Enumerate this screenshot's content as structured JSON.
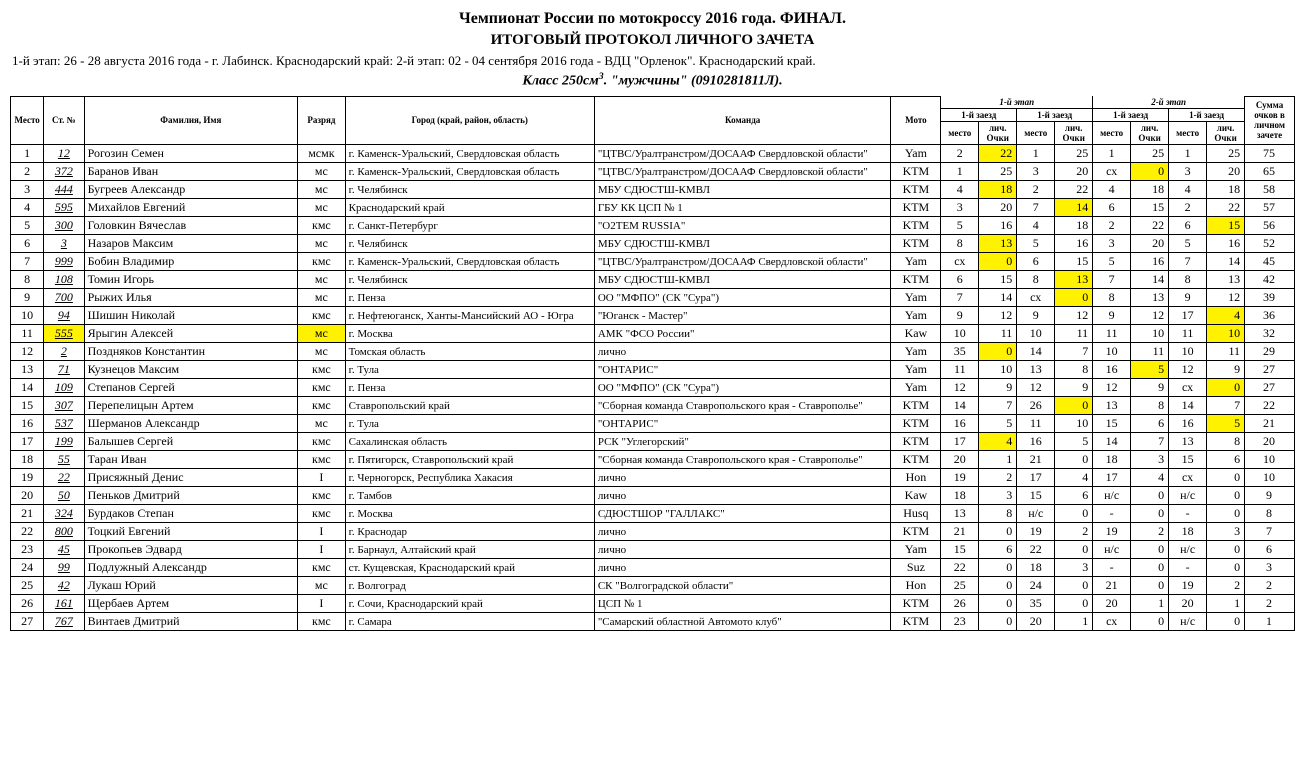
{
  "title1": "Чемпионат России по мотокроссу 2016 года. ФИНАЛ.",
  "title2": "ИТОГОВЫЙ ПРОТОКОЛ  ЛИЧНОГО  ЗАЧЕТА",
  "subtitle": "1-й этап: 26 - 28 августа 2016 года - г. Лабинск. Краснодарский край: 2-й этап: 02 - 04 сентября 2016 года - ВДЦ \"Орленок\". Краснодарский край.",
  "class_prefix": "Класс  250см",
  "class_sup": "3",
  "class_suffix": ". \"мужчины\" (0910281811Л).",
  "stage1_label": "1-й этап",
  "stage2_label": "2-й этап",
  "heat1_label": "1-й заезд",
  "heat2_label": "1-й заезд",
  "heat3_label": "1-й заезд",
  "heat4_label": "1-й заезд",
  "headers": {
    "place": "Место",
    "num": "Ст. №",
    "name": "Фамилия, Имя",
    "rank": "Разряд",
    "city": "Город (край, район, область)",
    "team": "Команда",
    "moto": "Мото",
    "m": "место",
    "pts": "лич. Очки",
    "total": "Сумма очков в личном зачете"
  },
  "highlight_color": "#fff200",
  "rows": [
    {
      "p": "1",
      "n": "12",
      "name": "Рогозин Семен",
      "rank": "мсмк",
      "city": "г. Каменск-Уральский, Свердловская область",
      "team": "\"ЦТВС/Уралтранстром/ДОСААФ Свердловской области\"",
      "moto": "Yam",
      "h": [
        [
          "2",
          "22",
          true
        ],
        [
          "1",
          "25",
          false
        ],
        [
          "1",
          "25",
          false
        ],
        [
          "1",
          "25",
          false
        ]
      ],
      "t": "75"
    },
    {
      "p": "2",
      "n": "372",
      "name": "Баранов Иван",
      "rank": "мс",
      "city": "г. Каменск-Уральский, Свердловская область",
      "team": "\"ЦТВС/Уралтранстром/ДОСААФ Свердловской области\"",
      "moto": "KTM",
      "h": [
        [
          "1",
          "25",
          false
        ],
        [
          "3",
          "20",
          false
        ],
        [
          "сх",
          "0",
          true
        ],
        [
          "3",
          "20",
          false
        ]
      ],
      "t": "65"
    },
    {
      "p": "3",
      "n": "444",
      "name": "Бугреев Александр",
      "rank": "мс",
      "city": "г. Челябинск",
      "team": "МБУ СДЮСТШ-КМВЛ",
      "moto": "KTM",
      "h": [
        [
          "4",
          "18",
          true
        ],
        [
          "2",
          "22",
          false
        ],
        [
          "4",
          "18",
          false
        ],
        [
          "4",
          "18",
          false
        ]
      ],
      "t": "58"
    },
    {
      "p": "4",
      "n": "595",
      "name": "Михайлов Евгений",
      "rank": "мс",
      "city": "Краснодарский край",
      "team": "ГБУ КК ЦСП № 1",
      "moto": "KTM",
      "h": [
        [
          "3",
          "20",
          false
        ],
        [
          "7",
          "14",
          true
        ],
        [
          "6",
          "15",
          false
        ],
        [
          "2",
          "22",
          false
        ]
      ],
      "t": "57"
    },
    {
      "p": "5",
      "n": "300",
      "name": "Головкин Вячеслав",
      "rank": "кмс",
      "city": "г. Санкт-Петербург",
      "team": "\"O2TEM RUSSIA\"",
      "moto": "KTM",
      "h": [
        [
          "5",
          "16",
          false
        ],
        [
          "4",
          "18",
          false
        ],
        [
          "2",
          "22",
          false
        ],
        [
          "6",
          "15",
          true
        ]
      ],
      "t": "56"
    },
    {
      "p": "6",
      "n": "3",
      "name": "Назаров Максим",
      "rank": "мс",
      "city": "г. Челябинск",
      "team": "МБУ СДЮСТШ-КМВЛ",
      "moto": "KTM",
      "h": [
        [
          "8",
          "13",
          true
        ],
        [
          "5",
          "16",
          false
        ],
        [
          "3",
          "20",
          false
        ],
        [
          "5",
          "16",
          false
        ]
      ],
      "t": "52"
    },
    {
      "p": "7",
      "n": "999",
      "name": "Бобин Владимир",
      "rank": "кмс",
      "city": "г. Каменск-Уральский, Свердловская область",
      "team": "\"ЦТВС/Уралтранстром/ДОСААФ Свердловской области\"",
      "moto": "Yam",
      "h": [
        [
          "сх",
          "0",
          true
        ],
        [
          "6",
          "15",
          false
        ],
        [
          "5",
          "16",
          false
        ],
        [
          "7",
          "14",
          false
        ]
      ],
      "t": "45"
    },
    {
      "p": "8",
      "n": "108",
      "name": "Томин Игорь",
      "rank": "мс",
      "city": "г. Челябинск",
      "team": "МБУ СДЮСТШ-КМВЛ",
      "moto": "KTM",
      "h": [
        [
          "6",
          "15",
          false
        ],
        [
          "8",
          "13",
          true
        ],
        [
          "7",
          "14",
          false
        ],
        [
          "8",
          "13",
          false
        ]
      ],
      "t": "42"
    },
    {
      "p": "9",
      "n": "700",
      "name": "Рыжих Илья",
      "rank": "мс",
      "city": "г. Пенза",
      "team": "ОО \"МФПО\" (СК \"Сура\")",
      "moto": "Yam",
      "h": [
        [
          "7",
          "14",
          false
        ],
        [
          "сх",
          "0",
          true
        ],
        [
          "8",
          "13",
          false
        ],
        [
          "9",
          "12",
          false
        ]
      ],
      "t": "39"
    },
    {
      "p": "10",
      "n": "94",
      "name": "Шишин Николай",
      "rank": "кмс",
      "city": "г. Нефтеюганск, Ханты-Мансийский АО - Югра",
      "team": "\"Юганск - Мастер\"",
      "moto": "Yam",
      "h": [
        [
          "9",
          "12",
          false
        ],
        [
          "9",
          "12",
          false
        ],
        [
          "9",
          "12",
          false
        ],
        [
          "17",
          "4",
          true
        ]
      ],
      "t": "36"
    },
    {
      "p": "11",
      "n": "555",
      "nhl": true,
      "name": "Ярыгин Алексей",
      "rank": "мс",
      "rankhl": true,
      "city": "г. Москва",
      "team": "АМК \"ФСО России\"",
      "moto": "Kaw",
      "h": [
        [
          "10",
          "11",
          false
        ],
        [
          "10",
          "11",
          false
        ],
        [
          "11",
          "10",
          false
        ],
        [
          "11",
          "10",
          true
        ]
      ],
      "t": "32"
    },
    {
      "p": "12",
      "n": "2",
      "name": "Поздняков Константин",
      "rank": "мс",
      "city": "Томская область",
      "team": "лично",
      "moto": "Yam",
      "h": [
        [
          "35",
          "0",
          true
        ],
        [
          "14",
          "7",
          false
        ],
        [
          "10",
          "11",
          false
        ],
        [
          "10",
          "11",
          false
        ]
      ],
      "t": "29"
    },
    {
      "p": "13",
      "n": "71",
      "name": "Кузнецов Максим",
      "rank": "кмс",
      "city": "г. Тула",
      "team": "\"ОНТАРИС\"",
      "moto": "Yam",
      "h": [
        [
          "11",
          "10",
          false
        ],
        [
          "13",
          "8",
          false
        ],
        [
          "16",
          "5",
          true
        ],
        [
          "12",
          "9",
          false
        ]
      ],
      "t": "27"
    },
    {
      "p": "14",
      "n": "109",
      "name": "Степанов Сергей",
      "rank": "кмс",
      "city": "г. Пенза",
      "team": "ОО \"МФПО\" (СК \"Сура\")",
      "moto": "Yam",
      "h": [
        [
          "12",
          "9",
          false
        ],
        [
          "12",
          "9",
          false
        ],
        [
          "12",
          "9",
          false
        ],
        [
          "сх",
          "0",
          true
        ]
      ],
      "t": "27"
    },
    {
      "p": "15",
      "n": "307",
      "name": "Перепелицын Артем",
      "rank": "кмс",
      "city": "Ставропольский край",
      "team": "\"Сборная команда Ставропольского края - Ставрополье\"",
      "moto": "KTM",
      "h": [
        [
          "14",
          "7",
          false
        ],
        [
          "26",
          "0",
          true
        ],
        [
          "13",
          "8",
          false
        ],
        [
          "14",
          "7",
          false
        ]
      ],
      "t": "22"
    },
    {
      "p": "16",
      "n": "537",
      "name": "Шерманов Александр",
      "rank": "мс",
      "city": "г. Тула",
      "team": "\"ОНТАРИС\"",
      "moto": "KTM",
      "h": [
        [
          "16",
          "5",
          false
        ],
        [
          "11",
          "10",
          false
        ],
        [
          "15",
          "6",
          false
        ],
        [
          "16",
          "5",
          true
        ]
      ],
      "t": "21"
    },
    {
      "p": "17",
      "n": "199",
      "name": "Балышев Сергей",
      "rank": "кмс",
      "city": "Сахалинская область",
      "team": "РСК \"Углегорский\"",
      "moto": "KTM",
      "h": [
        [
          "17",
          "4",
          true
        ],
        [
          "16",
          "5",
          false
        ],
        [
          "14",
          "7",
          false
        ],
        [
          "13",
          "8",
          false
        ]
      ],
      "t": "20"
    },
    {
      "p": "18",
      "n": "55",
      "name": "Таран Иван",
      "rank": "кмс",
      "city": "г. Пятигорск, Ставропольский край",
      "team": "\"Сборная команда Ставропольского края - Ставрополье\"",
      "moto": "KTM",
      "h": [
        [
          "20",
          "1",
          false
        ],
        [
          "21",
          "0",
          false
        ],
        [
          "18",
          "3",
          false
        ],
        [
          "15",
          "6",
          false
        ]
      ],
      "t": "10"
    },
    {
      "p": "19",
      "n": "22",
      "name": "Присяжный Денис",
      "rank": "I",
      "city": "г. Черногорск, Республика Хакасия",
      "team": "лично",
      "moto": "Hon",
      "h": [
        [
          "19",
          "2",
          false
        ],
        [
          "17",
          "4",
          false
        ],
        [
          "17",
          "4",
          false
        ],
        [
          "сх",
          "0",
          false
        ]
      ],
      "t": "10"
    },
    {
      "p": "20",
      "n": "50",
      "name": "Пеньков Дмитрий",
      "rank": "кмс",
      "city": "г. Тамбов",
      "team": "лично",
      "moto": "Kaw",
      "h": [
        [
          "18",
          "3",
          false
        ],
        [
          "15",
          "6",
          false
        ],
        [
          "н/с",
          "0",
          false
        ],
        [
          "н/с",
          "0",
          false
        ]
      ],
      "t": "9"
    },
    {
      "p": "21",
      "n": "324",
      "name": "Бурдаков Степан",
      "rank": "кмс",
      "city": "г. Москва",
      "team": "СДЮСТШОР \"ГАЛЛАКС\"",
      "moto": "Husq",
      "h": [
        [
          "13",
          "8",
          false
        ],
        [
          "н/с",
          "0",
          false
        ],
        [
          "-",
          "0",
          false
        ],
        [
          "-",
          "0",
          false
        ]
      ],
      "t": "8"
    },
    {
      "p": "22",
      "n": "800",
      "name": "Тоцкий Евгений",
      "rank": "I",
      "city": "г. Краснодар",
      "team": "лично",
      "moto": "KTM",
      "h": [
        [
          "21",
          "0",
          false
        ],
        [
          "19",
          "2",
          false
        ],
        [
          "19",
          "2",
          false
        ],
        [
          "18",
          "3",
          false
        ]
      ],
      "t": "7"
    },
    {
      "p": "23",
      "n": "45",
      "name": "Прокопьев Эдвард",
      "rank": "I",
      "city": "г. Барнаул, Алтайский край",
      "team": "лично",
      "moto": "Yam",
      "h": [
        [
          "15",
          "6",
          false
        ],
        [
          "22",
          "0",
          false
        ],
        [
          "н/с",
          "0",
          false
        ],
        [
          "н/с",
          "0",
          false
        ]
      ],
      "t": "6"
    },
    {
      "p": "24",
      "n": "99",
      "name": "Подлужный Александр",
      "rank": "кмс",
      "city": "ст. Кущевская, Краснодарский край",
      "team": "лично",
      "moto": "Suz",
      "h": [
        [
          "22",
          "0",
          false
        ],
        [
          "18",
          "3",
          false
        ],
        [
          "-",
          "0",
          false
        ],
        [
          "-",
          "0",
          false
        ]
      ],
      "t": "3"
    },
    {
      "p": "25",
      "n": "42",
      "name": "Лукаш Юрий",
      "rank": "мс",
      "city": "г. Волгоград",
      "team": "СК \"Волгоградской области\"",
      "moto": "Hon",
      "h": [
        [
          "25",
          "0",
          false
        ],
        [
          "24",
          "0",
          false
        ],
        [
          "21",
          "0",
          false
        ],
        [
          "19",
          "2",
          false
        ]
      ],
      "t": "2"
    },
    {
      "p": "26",
      "n": "161",
      "name": "Щербаев Артем",
      "rank": "I",
      "city": "г. Сочи, Краснодарский край",
      "team": "ЦСП № 1",
      "moto": "KTM",
      "h": [
        [
          "26",
          "0",
          false
        ],
        [
          "35",
          "0",
          false
        ],
        [
          "20",
          "1",
          false
        ],
        [
          "20",
          "1",
          false
        ]
      ],
      "t": "2"
    },
    {
      "p": "27",
      "n": "767",
      "name": "Винтаев Дмитрий",
      "rank": "кмс",
      "city": "г. Самара",
      "team": "\"Самарский областной Автомото клуб\"",
      "moto": "KTM",
      "h": [
        [
          "23",
          "0",
          false
        ],
        [
          "20",
          "1",
          false
        ],
        [
          "сх",
          "0",
          false
        ],
        [
          "н/с",
          "0",
          false
        ]
      ],
      "t": "1"
    }
  ]
}
